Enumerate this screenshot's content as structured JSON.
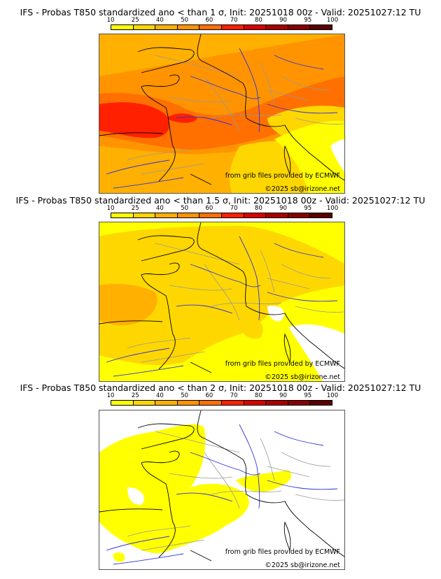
{
  "panels": [
    {
      "title": "IFS - Probas T850  standardized ano < than 1 σ, Init: 20251018 00z - Valid: 20251027:12 TU",
      "threshold_sigma": "1"
    },
    {
      "title": "IFS - Probas T850  standardized ano < than 1.5 σ, Init: 20251018 00z - Valid: 20251027:12 TU",
      "threshold_sigma": "1.5"
    },
    {
      "title": "IFS - Probas T850  standardized ano < than 2 σ, Init: 20251018 00z - Valid: 20251027:12 TU",
      "threshold_sigma": "2"
    }
  ],
  "colorbar": {
    "labels": [
      "10",
      "25",
      "40",
      "50",
      "60",
      "70",
      "80",
      "90",
      "95",
      "100"
    ],
    "colors": [
      "#ffff00",
      "#ffd700",
      "#ffb000",
      "#ff9400",
      "#ff7000",
      "#ff2000",
      "#dd0000",
      "#aa0000",
      "#880000",
      "#5a0000"
    ]
  },
  "credits": {
    "source": "from grib files provided by ECMWF",
    "copyright": "©2025 sb@irizone.net"
  },
  "colors": {
    "coast": "#000000",
    "borders": "#999999",
    "rivers": "#3030dd"
  }
}
